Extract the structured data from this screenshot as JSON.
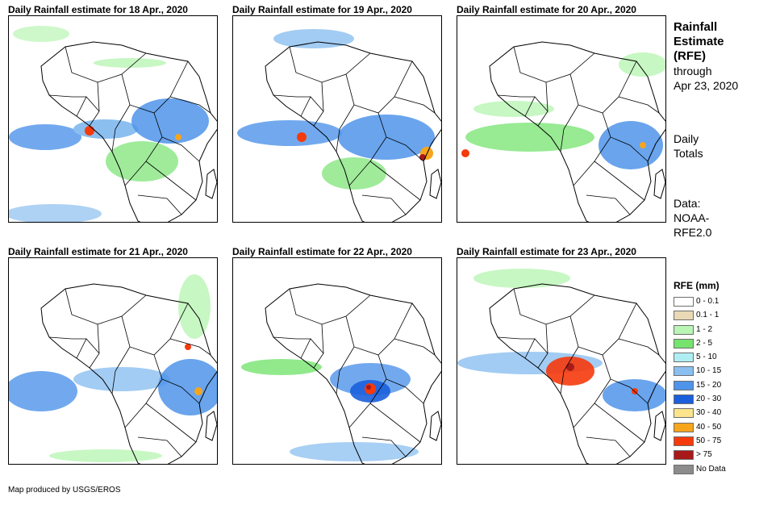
{
  "panels": [
    {
      "title": "Daily Rainfall estimate for 18 Apr., 2020"
    },
    {
      "title": "Daily Rainfall estimate for 19 Apr., 2020"
    },
    {
      "title": "Daily Rainfall estimate for 20 Apr., 2020"
    },
    {
      "title": "Daily Rainfall estimate for 21 Apr., 2020"
    },
    {
      "title": "Daily Rainfall estimate for 22 Apr., 2020"
    },
    {
      "title": "Daily Rainfall estimate for 23 Apr., 2020"
    }
  ],
  "side": {
    "title_line1": "Rainfall",
    "title_line2": "Estimate",
    "title_line3": "(RFE)",
    "through": "through",
    "date": "Apr 23, 2020",
    "daily1": "Daily",
    "daily2": "Totals",
    "data1": "Data:",
    "data2": "NOAA-",
    "data3": "RFE2.0"
  },
  "legend": {
    "title": "RFE (mm)",
    "items": [
      {
        "label": "0 - 0.1",
        "color": "#ffffff"
      },
      {
        "label": "0.1 - 1",
        "color": "#ead9b5"
      },
      {
        "label": "1 - 2",
        "color": "#b9f5b4"
      },
      {
        "label": "2 - 5",
        "color": "#76e36f"
      },
      {
        "label": "5 - 10",
        "color": "#aeeef3"
      },
      {
        "label": "10 - 15",
        "color": "#8bbff0"
      },
      {
        "label": "15 - 20",
        "color": "#4f94ea"
      },
      {
        "label": "20 - 30",
        "color": "#1b5fdc"
      },
      {
        "label": "30 - 40",
        "color": "#fbe48c"
      },
      {
        "label": "40 - 50",
        "color": "#f7a51d"
      },
      {
        "label": "50 - 75",
        "color": "#f53a0c"
      },
      {
        "label": "> 75",
        "color": "#a8191a"
      },
      {
        "label": "No Data",
        "color": "#8c8c8c"
      }
    ]
  },
  "credit": "Map produced by USGS/EROS"
}
